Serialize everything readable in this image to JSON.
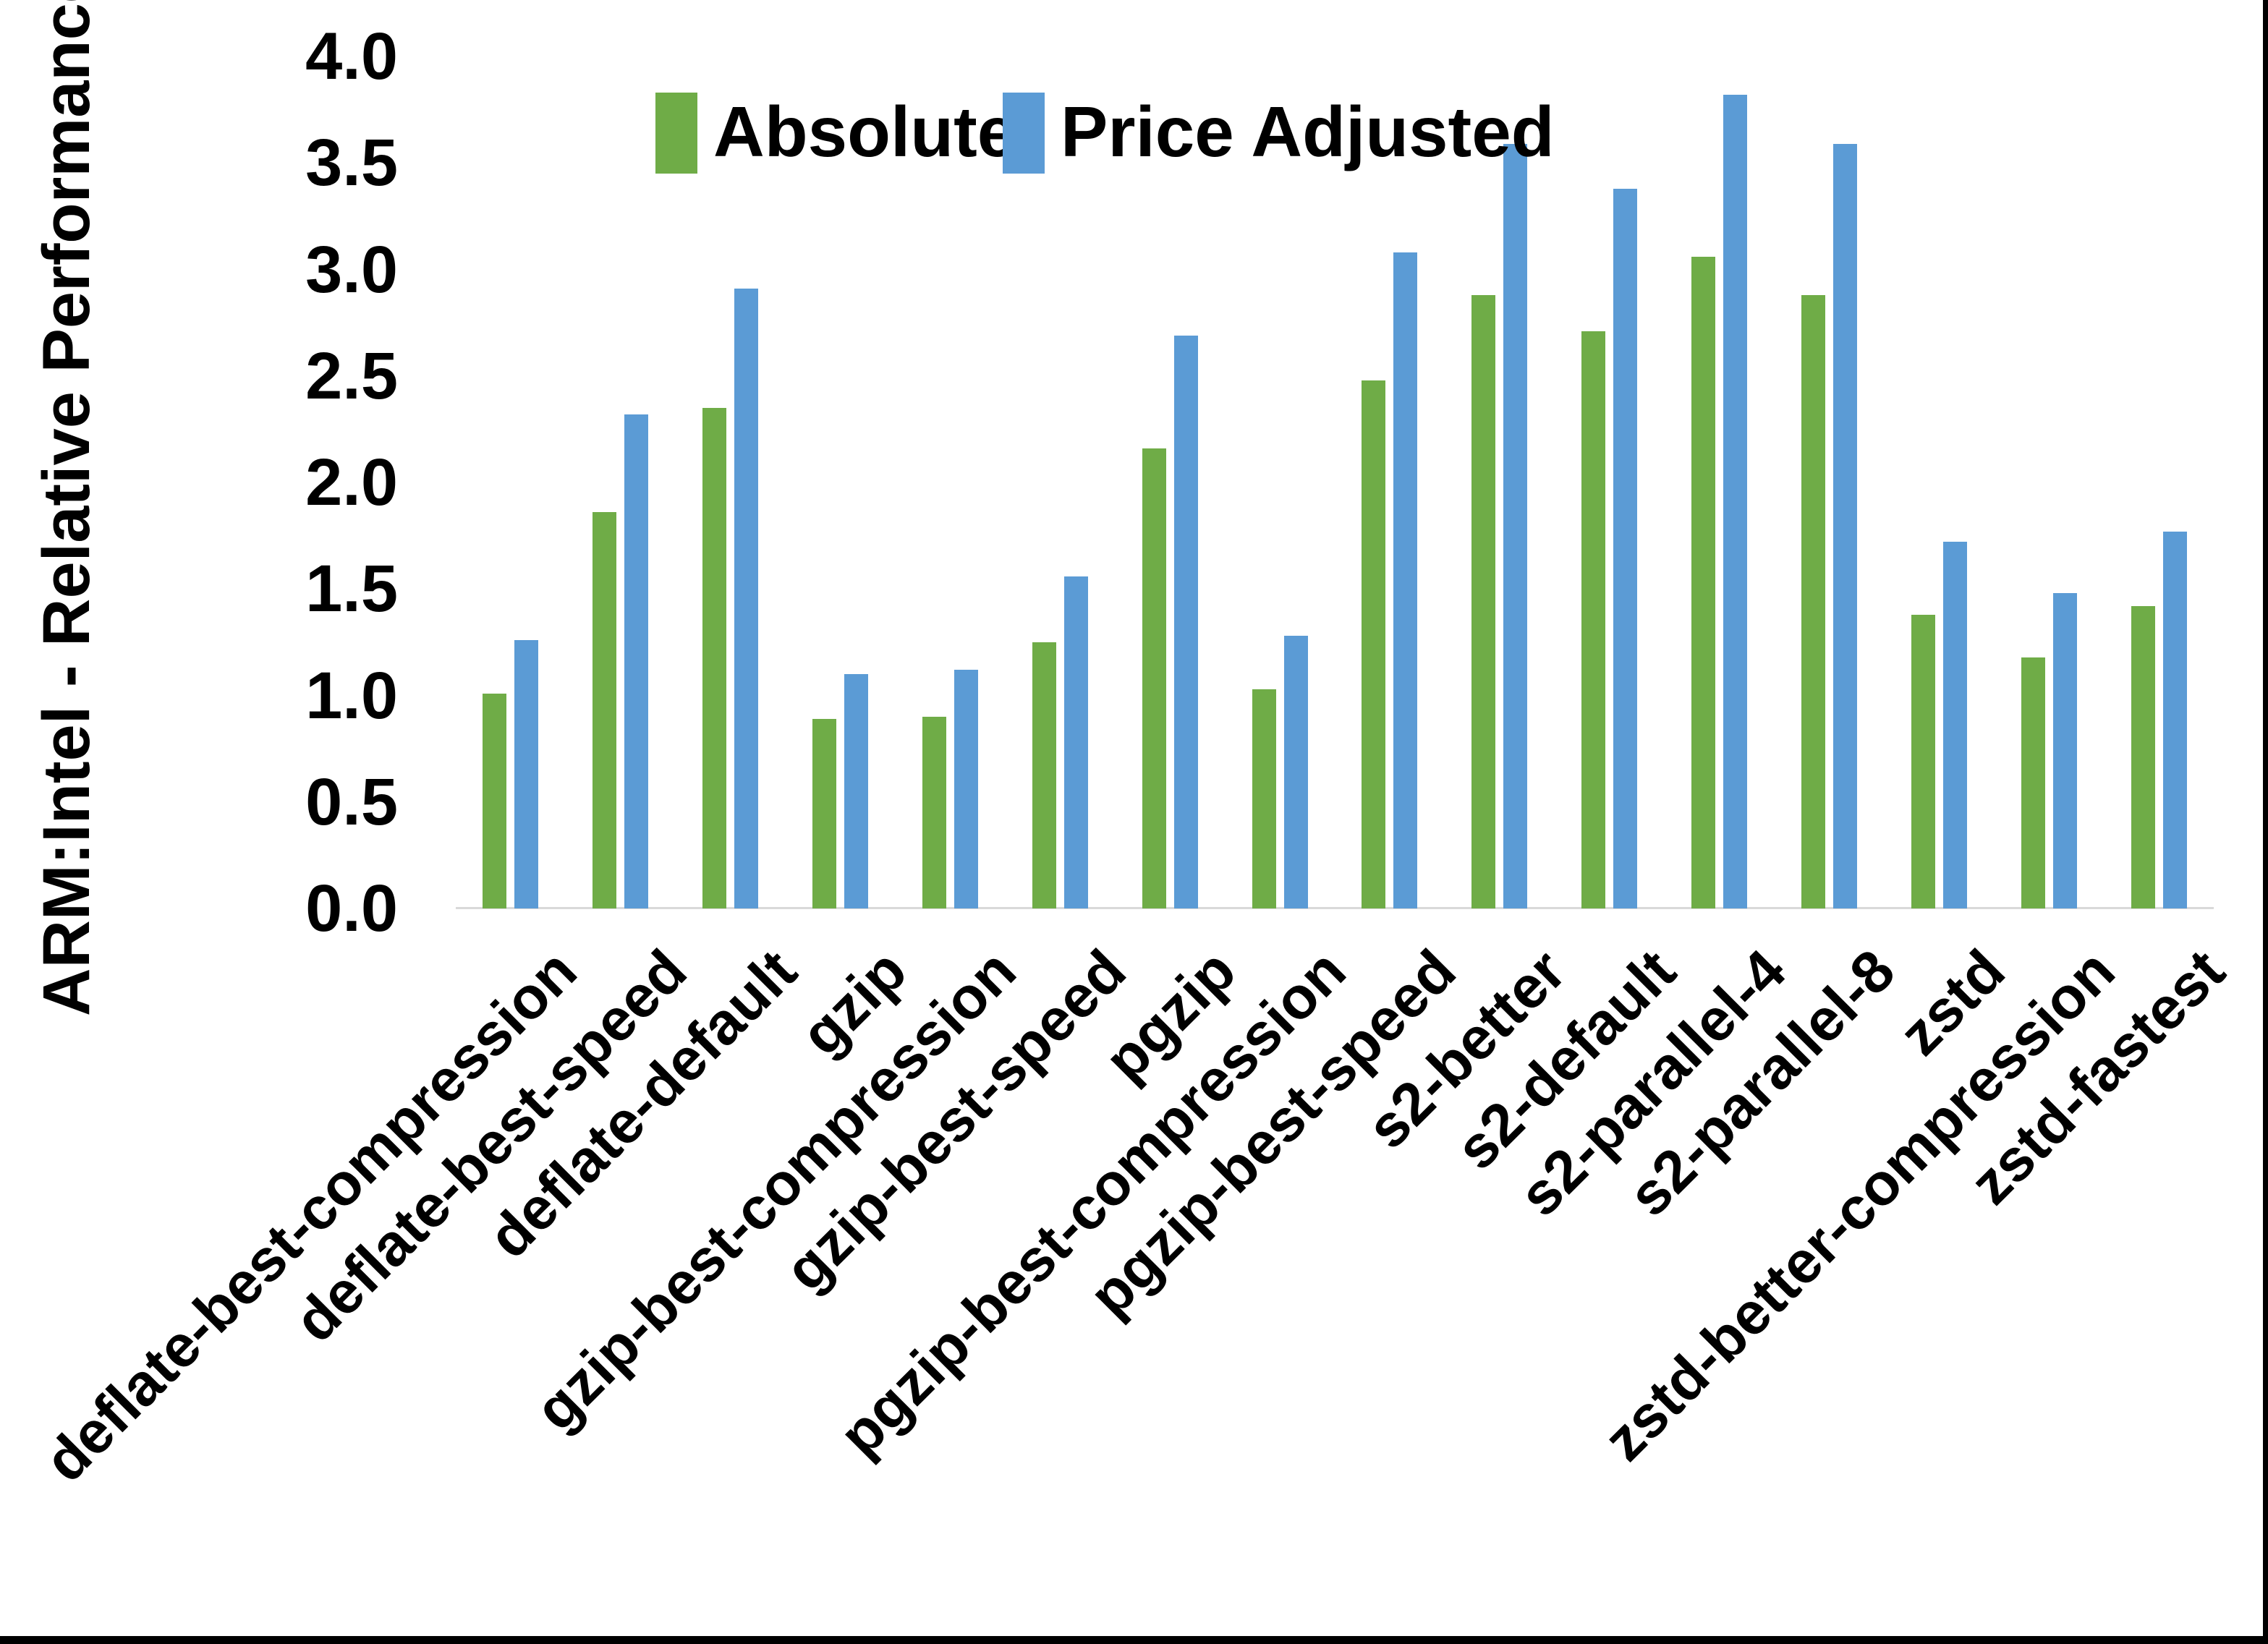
{
  "chart_data": {
    "type": "bar",
    "title": "",
    "xlabel": "",
    "ylabel": "ARM:Intel - Relative Performance",
    "ylim": [
      0.0,
      4.0
    ],
    "ytick_step": 0.5,
    "ytick_labels": [
      "0.0",
      "0.5",
      "1.0",
      "1.5",
      "2.0",
      "2.5",
      "3.0",
      "3.5",
      "4.0"
    ],
    "grid": false,
    "legend_position": "top-center",
    "categories": [
      "deflate-best-compression",
      "deflate-best-speed",
      "deflate-default",
      "gzip",
      "gzip-best-compression",
      "gzip-best-speed",
      "pgzip",
      "pgzip-best-compression",
      "pgzip-best-speed",
      "s2-better",
      "s2-default",
      "s2-parallel-4",
      "s2-parallel-8",
      "zstd",
      "zstd-better-compression",
      "zstd-fastest"
    ],
    "series": [
      {
        "name": "Absolute",
        "color": "#6FAC47",
        "values": [
          1.01,
          1.86,
          2.35,
          0.89,
          0.9,
          1.25,
          2.16,
          1.03,
          2.48,
          2.88,
          2.71,
          3.06,
          2.88,
          1.38,
          1.18,
          1.42
        ]
      },
      {
        "name": "Price Adjusted",
        "color": "#5B9BD5",
        "values": [
          1.26,
          2.32,
          2.91,
          1.1,
          1.12,
          1.56,
          2.69,
          1.28,
          3.08,
          3.59,
          3.38,
          3.82,
          3.59,
          1.72,
          1.48,
          1.77
        ]
      }
    ]
  },
  "colors": {
    "background": "#FFFFFF",
    "axis_line": "#D9D9D9",
    "text": "#000000",
    "frame": "#000000"
  }
}
